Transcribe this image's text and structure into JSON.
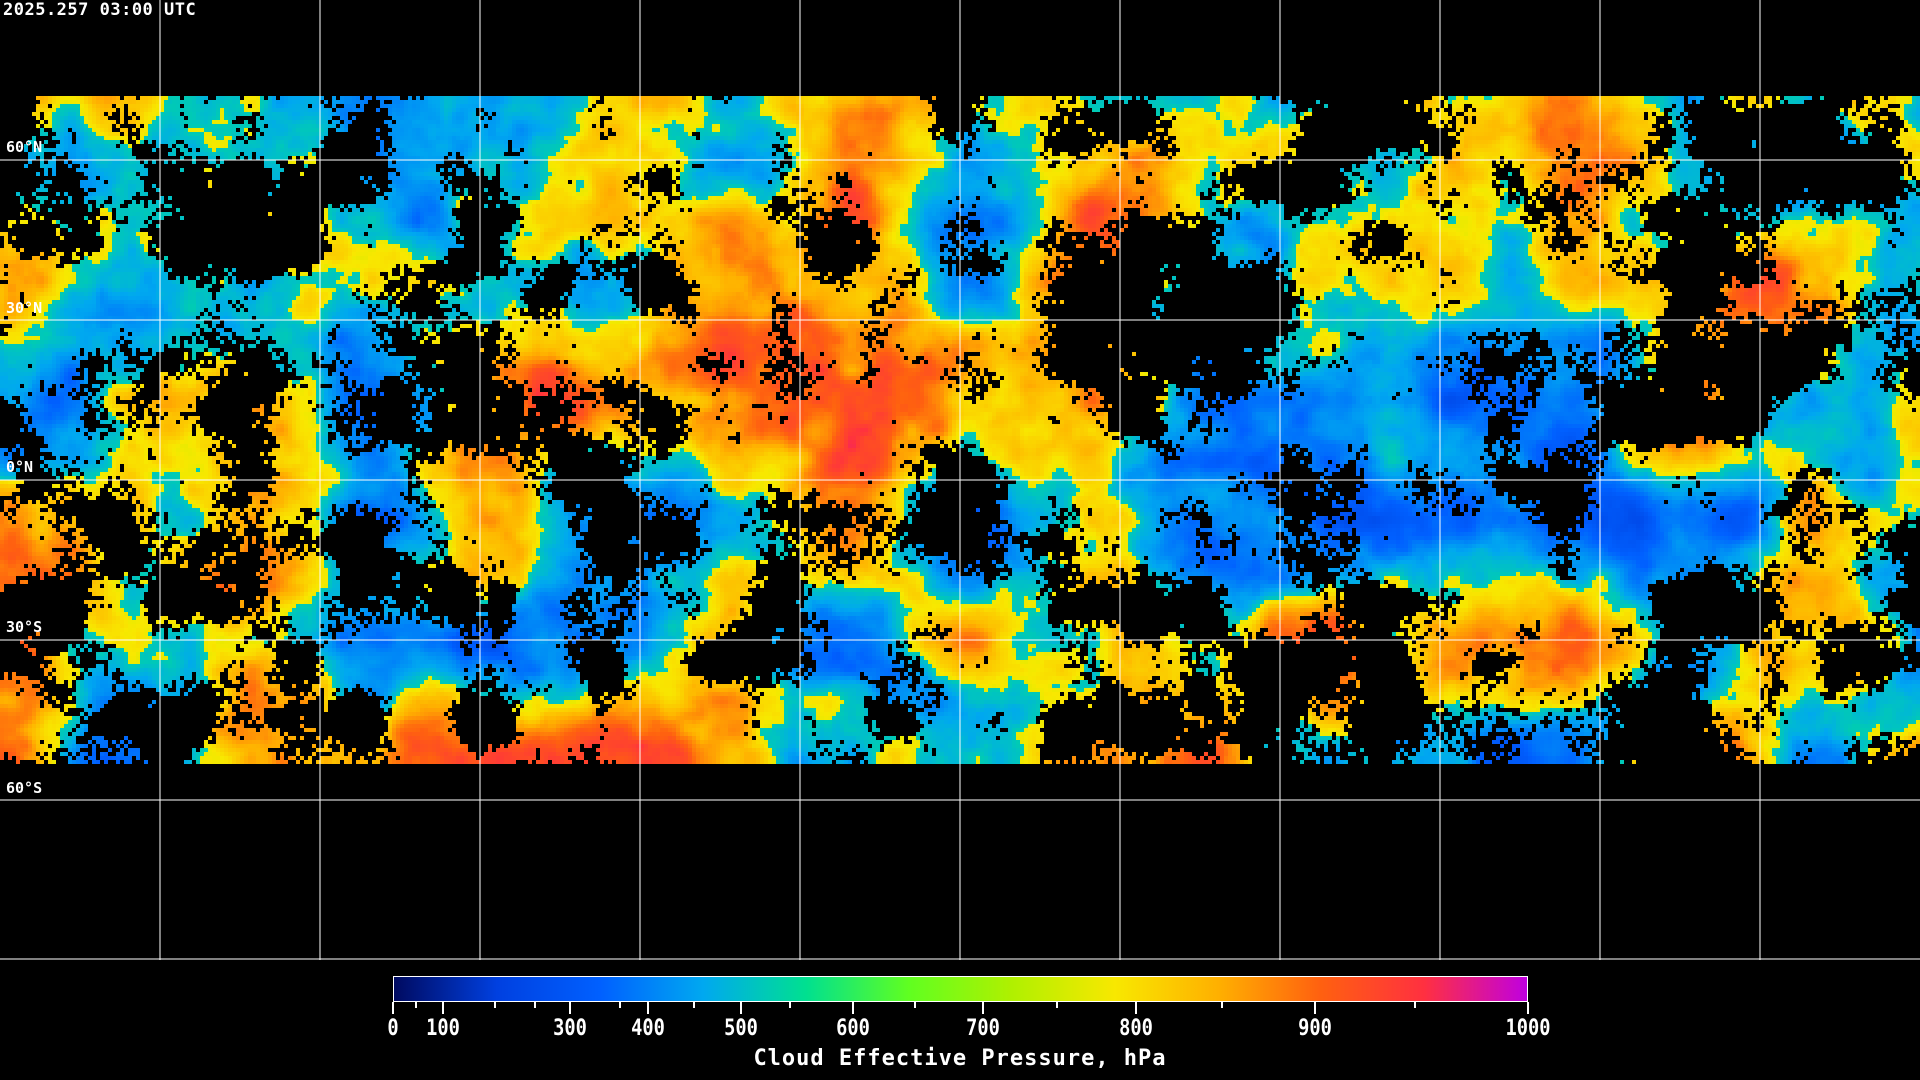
{
  "timestamp": "2025.257 03:00 UTC",
  "map": {
    "projection": "equirectangular",
    "grid_spacing_deg": 30,
    "grid_color": "#ffffff",
    "coastline_color": "#ffffff",
    "lat_labels": [
      "60°N",
      "30°N",
      "0°N",
      "30°S",
      "60°S"
    ],
    "lat_values": [
      60,
      30,
      0,
      -30,
      -60
    ]
  },
  "colorbar": {
    "title": "Cloud Effective Pressure, hPa",
    "min": 0,
    "max": 1000,
    "tick_labels": [
      "0",
      "100",
      "300",
      "400",
      "500",
      "600",
      "700",
      "800",
      "900",
      "1000"
    ],
    "colors": [
      "#000a60",
      "#0040e0",
      "#0060ff",
      "#00a8f0",
      "#00e090",
      "#60ff20",
      "#b0f000",
      "#f8e800",
      "#ffb000",
      "#ff6010",
      "#ff3040",
      "#c000e0"
    ]
  }
}
